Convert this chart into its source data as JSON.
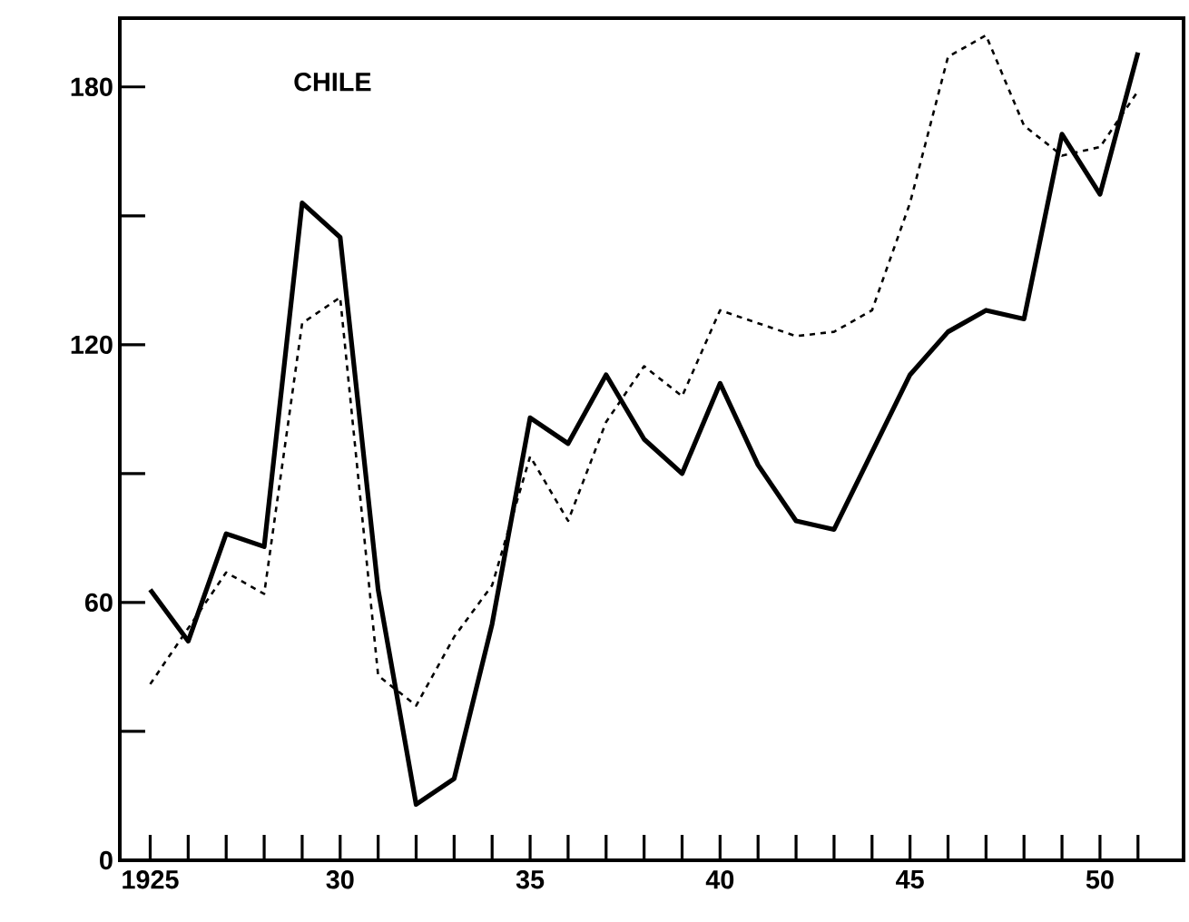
{
  "chart_data": {
    "type": "line",
    "title": "CHILE",
    "x": [
      1925,
      1926,
      1927,
      1928,
      1929,
      1930,
      1931,
      1932,
      1933,
      1934,
      1935,
      1936,
      1937,
      1938,
      1939,
      1940,
      1941,
      1942,
      1943,
      1944,
      1945,
      1946,
      1947,
      1948,
      1949,
      1950,
      1951
    ],
    "series": [
      {
        "color": "#000000",
        "line_style": "solid",
        "values": [
          63,
          51,
          76,
          73,
          153,
          145,
          63,
          13,
          19,
          55,
          103,
          97,
          113,
          98,
          90,
          111,
          92,
          79,
          77,
          95,
          113,
          123,
          128,
          126,
          169,
          155,
          188
        ]
      },
      {
        "color": "#000000",
        "line_style": "dashed",
        "values": [
          41,
          54,
          67,
          62,
          125,
          131,
          43,
          36,
          52,
          64,
          94,
          79,
          102,
          115,
          108,
          128,
          125,
          122,
          123,
          128,
          153,
          187,
          192,
          171,
          164,
          166,
          179
        ]
      }
    ],
    "xlim": [
      1924.2,
      1952.2
    ],
    "ylim": [
      0,
      196
    ],
    "xticks": [
      {
        "value": 1925,
        "label": "1925"
      },
      {
        "value": 1926,
        "label": null
      },
      {
        "value": 1927,
        "label": null
      },
      {
        "value": 1928,
        "label": null
      },
      {
        "value": 1929,
        "label": null
      },
      {
        "value": 1930,
        "label": "30"
      },
      {
        "value": 1931,
        "label": null
      },
      {
        "value": 1932,
        "label": null
      },
      {
        "value": 1933,
        "label": null
      },
      {
        "value": 1934,
        "label": null
      },
      {
        "value": 1935,
        "label": "35"
      },
      {
        "value": 1936,
        "label": null
      },
      {
        "value": 1937,
        "label": null
      },
      {
        "value": 1938,
        "label": null
      },
      {
        "value": 1939,
        "label": null
      },
      {
        "value": 1940,
        "label": "40"
      },
      {
        "value": 1941,
        "label": null
      },
      {
        "value": 1942,
        "label": null
      },
      {
        "value": 1943,
        "label": null
      },
      {
        "value": 1944,
        "label": null
      },
      {
        "value": 1945,
        "label": "45"
      },
      {
        "value": 1946,
        "label": null
      },
      {
        "value": 1947,
        "label": null
      },
      {
        "value": 1948,
        "label": null
      },
      {
        "value": 1949,
        "label": null
      },
      {
        "value": 1950,
        "label": "50"
      },
      {
        "value": 1951,
        "label": null
      }
    ],
    "yticks": [
      0,
      {
        "value": 30,
        "label": null
      },
      60,
      {
        "value": 90,
        "label": null
      },
      120,
      {
        "value": 150,
        "label": null
      },
      180
    ],
    "marker": "none"
  }
}
